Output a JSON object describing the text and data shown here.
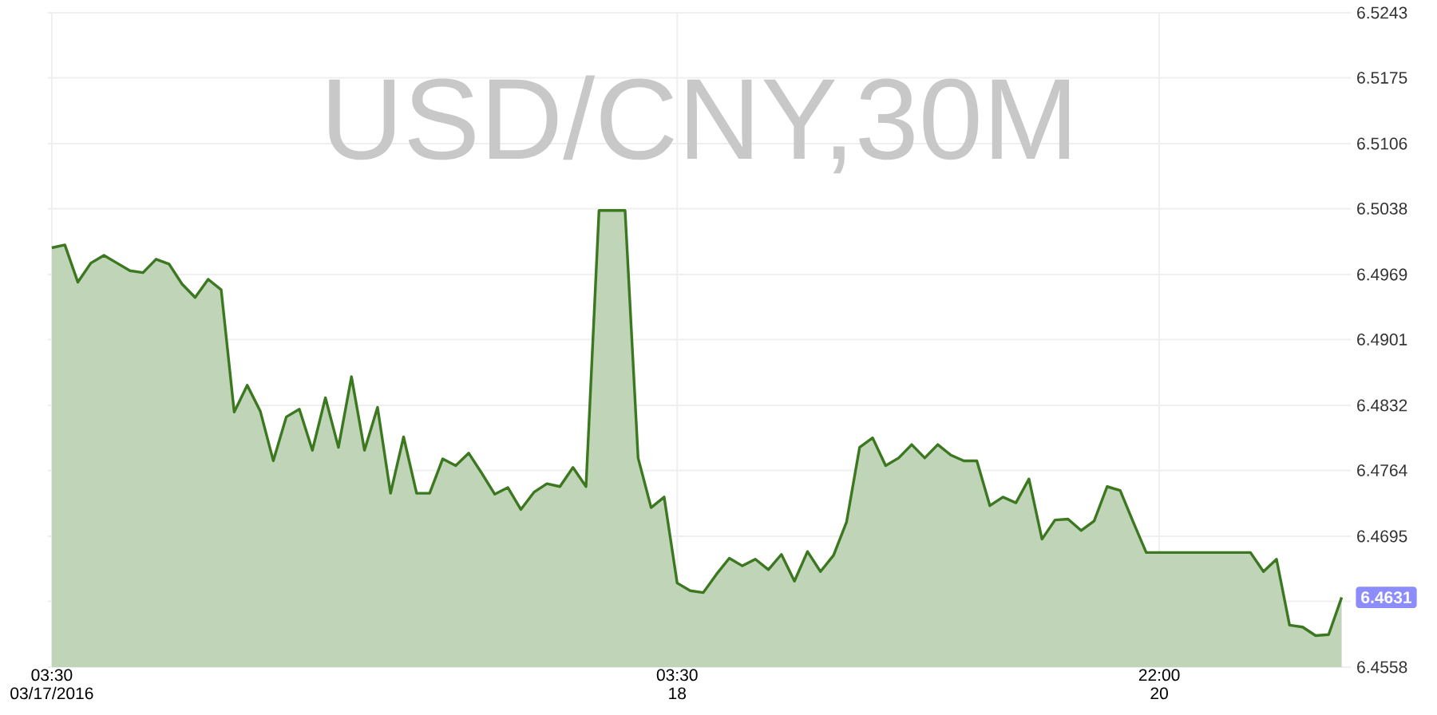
{
  "chart_data": {
    "type": "area",
    "title": "USD/CNY,30M",
    "categories": [
      "03:30 03/17/2016",
      null,
      null,
      null,
      null,
      null,
      null,
      null,
      null,
      null,
      null,
      null,
      null,
      null,
      null,
      null,
      null,
      null,
      null,
      null,
      null,
      null,
      null,
      null,
      null,
      null,
      null,
      null,
      null,
      null,
      null,
      null,
      null,
      null,
      null,
      null,
      null,
      null,
      null,
      null,
      null,
      null,
      null,
      null,
      null,
      null,
      null,
      null,
      "03:30 18",
      null,
      null,
      null,
      null,
      null,
      null,
      null,
      null,
      null,
      null,
      null,
      null,
      null,
      null,
      null,
      null,
      null,
      null,
      null,
      null,
      null,
      null,
      null,
      null,
      null,
      null,
      null,
      null,
      null,
      null,
      null,
      null,
      null,
      null,
      null,
      null,
      "22:00 20",
      null,
      null,
      null,
      null,
      null,
      null,
      null,
      null,
      null,
      null,
      null,
      null,
      null,
      null
    ],
    "values": [
      6.4997,
      6.5,
      6.4961,
      6.4981,
      6.4989,
      6.4981,
      6.4973,
      6.4971,
      6.4985,
      6.498,
      6.4959,
      6.4945,
      6.4964,
      6.4953,
      6.4825,
      6.4853,
      6.4826,
      6.4774,
      6.482,
      6.4828,
      6.4785,
      6.484,
      6.4788,
      6.4862,
      6.4785,
      6.483,
      6.474,
      6.4799,
      6.474,
      6.474,
      6.4776,
      6.4769,
      6.4782,
      6.4761,
      6.4739,
      6.4746,
      6.4723,
      6.4741,
      6.475,
      6.4747,
      6.4767,
      6.4747,
      6.5036,
      6.5036,
      6.5036,
      6.4777,
      6.4725,
      6.4736,
      6.4646,
      6.4638,
      6.4636,
      6.4655,
      6.4672,
      6.4664,
      6.4671,
      6.466,
      6.4676,
      6.4648,
      6.4679,
      6.4658,
      6.4675,
      6.471,
      6.4788,
      6.4798,
      6.4769,
      6.4777,
      6.4791,
      6.4777,
      6.4791,
      6.478,
      6.4774,
      6.4774,
      6.4727,
      6.4736,
      6.473,
      6.4755,
      6.4692,
      6.4712,
      6.4713,
      6.4701,
      6.4711,
      6.4747,
      6.4743,
      6.471,
      6.4678,
      6.4678,
      6.4678,
      6.4678,
      6.4678,
      6.4678,
      6.4678,
      6.4678,
      6.4678,
      6.4658,
      6.4671,
      6.4602,
      6.46,
      6.4591,
      6.4592,
      6.4631
    ],
    "color": "#3b7820",
    "ylim": [
      6.4558,
      6.5243
    ],
    "yticks": [
      6.4558,
      {
        "value": 6.4627,
        "label": null
      },
      6.4695,
      6.4764,
      6.4832,
      6.4901,
      6.4969,
      6.5038,
      6.5106,
      6.5175,
      6.5243
    ],
    "grid": true,
    "annotations": [
      "6.4631"
    ]
  }
}
